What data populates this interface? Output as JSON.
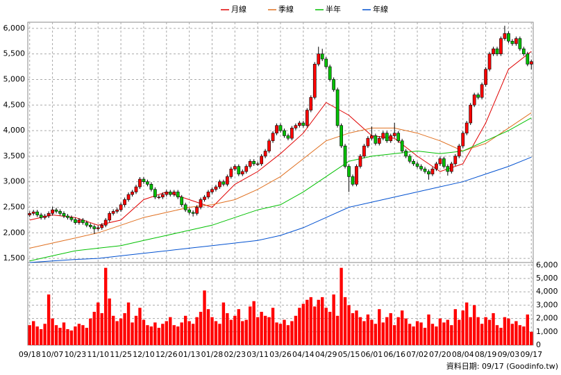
{
  "chart_data": {
    "type": "candlestick",
    "legend": [
      {
        "name": "月線",
        "color": "#e00000"
      },
      {
        "name": "季線",
        "color": "#e07020"
      },
      {
        "name": "半年",
        "color": "#00c000"
      },
      {
        "name": "年線",
        "color": "#0050d0"
      }
    ],
    "categories": [
      "09/18",
      null,
      null,
      null,
      null,
      null,
      "10/07",
      null,
      null,
      null,
      null,
      null,
      "10/23",
      null,
      null,
      null,
      null,
      null,
      "11/10",
      null,
      null,
      null,
      null,
      null,
      "11/25",
      null,
      null,
      null,
      null,
      null,
      "12/10",
      null,
      null,
      null,
      null,
      null,
      "12/26",
      null,
      null,
      null,
      null,
      null,
      "01/13",
      null,
      null,
      null,
      null,
      null,
      "01/28",
      null,
      null,
      null,
      null,
      null,
      "02/23",
      null,
      null,
      null,
      null,
      null,
      "03/11",
      null,
      null,
      null,
      null,
      null,
      "03/26",
      null,
      null,
      null,
      null,
      null,
      "04/14",
      null,
      null,
      null,
      null,
      null,
      "04/29",
      null,
      null,
      null,
      null,
      null,
      "05/15",
      null,
      null,
      null,
      null,
      null,
      "06/01",
      null,
      null,
      null,
      null,
      null,
      "06/16",
      null,
      null,
      null,
      null,
      null,
      "07/02",
      null,
      null,
      null,
      null,
      null,
      "07/20",
      null,
      null,
      null,
      null,
      null,
      "08/04",
      null,
      null,
      null,
      null,
      null,
      "08/19",
      null,
      null,
      null,
      null,
      null,
      "09/03",
      null,
      null,
      null,
      null,
      null,
      "09/17"
    ],
    "ohlc": [
      [
        2350,
        2420,
        2310,
        2380
      ],
      [
        2380,
        2450,
        2340,
        2410
      ],
      [
        2410,
        2450,
        2310,
        2350
      ],
      [
        2350,
        2390,
        2260,
        2300
      ],
      [
        2300,
        2370,
        2260,
        2330
      ],
      [
        2330,
        2420,
        2290,
        2380
      ],
      [
        2380,
        2510,
        2340,
        2450
      ],
      [
        2450,
        2490,
        2380,
        2420
      ],
      [
        2420,
        2460,
        2340,
        2380
      ],
      [
        2380,
        2420,
        2290,
        2330
      ],
      [
        2330,
        2370,
        2260,
        2300
      ],
      [
        2300,
        2340,
        2220,
        2260
      ],
      [
        2260,
        2300,
        2160,
        2200
      ],
      [
        2200,
        2290,
        2160,
        2250
      ],
      [
        2250,
        2290,
        2160,
        2200
      ],
      [
        2200,
        2240,
        2110,
        2150
      ],
      [
        2150,
        2190,
        2080,
        2120
      ],
      [
        2120,
        2160,
        1980,
        2080
      ],
      [
        2080,
        2140,
        2040,
        2100
      ],
      [
        2100,
        2190,
        2060,
        2150
      ],
      [
        2150,
        2290,
        2110,
        2250
      ],
      [
        2250,
        2420,
        2210,
        2380
      ],
      [
        2380,
        2460,
        2340,
        2420
      ],
      [
        2420,
        2490,
        2380,
        2450
      ],
      [
        2450,
        2590,
        2410,
        2550
      ],
      [
        2550,
        2690,
        2510,
        2650
      ],
      [
        2650,
        2790,
        2610,
        2750
      ],
      [
        2750,
        2840,
        2710,
        2800
      ],
      [
        2800,
        2940,
        2760,
        2900
      ],
      [
        2900,
        3090,
        2860,
        3050
      ],
      [
        3050,
        3090,
        2960,
        3000
      ],
      [
        3000,
        3040,
        2910,
        2950
      ],
      [
        2950,
        2990,
        2810,
        2850
      ],
      [
        2850,
        2890,
        2660,
        2700
      ],
      [
        2700,
        2740,
        2660,
        2700
      ],
      [
        2700,
        2790,
        2660,
        2750
      ],
      [
        2750,
        2840,
        2710,
        2800
      ],
      [
        2800,
        2840,
        2710,
        2750
      ],
      [
        2750,
        2840,
        2710,
        2800
      ],
      [
        2800,
        2840,
        2660,
        2700
      ],
      [
        2700,
        2740,
        2510,
        2550
      ],
      [
        2550,
        2590,
        2410,
        2450
      ],
      [
        2450,
        2490,
        2360,
        2400
      ],
      [
        2400,
        2440,
        2320,
        2380
      ],
      [
        2380,
        2540,
        2340,
        2500
      ],
      [
        2500,
        2690,
        2460,
        2650
      ],
      [
        2650,
        2740,
        2610,
        2700
      ],
      [
        2700,
        2840,
        2660,
        2800
      ],
      [
        2800,
        2890,
        2760,
        2850
      ],
      [
        2850,
        2940,
        2810,
        2900
      ],
      [
        2900,
        3040,
        2860,
        3000
      ],
      [
        3000,
        3040,
        2910,
        2950
      ],
      [
        2950,
        3140,
        2910,
        3100
      ],
      [
        3100,
        3290,
        3060,
        3250
      ],
      [
        3250,
        3340,
        3210,
        3300
      ],
      [
        3300,
        3340,
        3110,
        3150
      ],
      [
        3150,
        3240,
        3110,
        3200
      ],
      [
        3200,
        3340,
        3160,
        3300
      ],
      [
        3300,
        3440,
        3260,
        3400
      ],
      [
        3400,
        3440,
        3310,
        3350
      ],
      [
        3350,
        3390,
        3310,
        3350
      ],
      [
        3350,
        3540,
        3310,
        3500
      ],
      [
        3500,
        3640,
        3460,
        3600
      ],
      [
        3600,
        3840,
        3560,
        3800
      ],
      [
        3800,
        3990,
        3760,
        3950
      ],
      [
        3950,
        4140,
        3910,
        4100
      ],
      [
        4100,
        4140,
        3960,
        4000
      ],
      [
        4000,
        4040,
        3860,
        3900
      ],
      [
        3900,
        3940,
        3810,
        3850
      ],
      [
        3850,
        4090,
        3810,
        4050
      ],
      [
        4050,
        4140,
        4010,
        4100
      ],
      [
        4100,
        4190,
        4060,
        4150
      ],
      [
        4150,
        4190,
        4060,
        4100
      ],
      [
        4100,
        4440,
        4060,
        4400
      ],
      [
        4400,
        4690,
        4360,
        4650
      ],
      [
        4650,
        5340,
        4610,
        5300
      ],
      [
        5300,
        5640,
        5260,
        5500
      ],
      [
        5500,
        5600,
        5360,
        5400
      ],
      [
        5400,
        5440,
        5210,
        5250
      ],
      [
        5250,
        5290,
        4960,
        5000
      ],
      [
        5000,
        5040,
        4760,
        4800
      ],
      [
        4800,
        4840,
        4060,
        4100
      ],
      [
        4100,
        4140,
        3660,
        3700
      ],
      [
        3700,
        3740,
        3260,
        3300
      ],
      [
        3300,
        3340,
        2800,
        3100
      ],
      [
        3100,
        3140,
        2910,
        2950
      ],
      [
        2950,
        3340,
        2910,
        3300
      ],
      [
        3300,
        3540,
        3260,
        3500
      ],
      [
        3500,
        3740,
        3460,
        3700
      ],
      [
        3700,
        3890,
        3660,
        3850
      ],
      [
        3850,
        4080,
        3810,
        3900
      ],
      [
        3900,
        3940,
        3710,
        3750
      ],
      [
        3750,
        3890,
        3710,
        3850
      ],
      [
        3850,
        3990,
        3810,
        3950
      ],
      [
        3950,
        3990,
        3760,
        3800
      ],
      [
        3800,
        3940,
        3760,
        3900
      ],
      [
        3900,
        4150,
        3860,
        3950
      ],
      [
        3950,
        3990,
        3760,
        3800
      ],
      [
        3800,
        3840,
        3560,
        3600
      ],
      [
        3600,
        3640,
        3460,
        3500
      ],
      [
        3500,
        3540,
        3360,
        3400
      ],
      [
        3400,
        3440,
        3310,
        3350
      ],
      [
        3350,
        3390,
        3260,
        3300
      ],
      [
        3300,
        3340,
        3210,
        3250
      ],
      [
        3250,
        3290,
        3160,
        3200
      ],
      [
        3200,
        3240,
        3040,
        3150
      ],
      [
        3150,
        3290,
        3110,
        3250
      ],
      [
        3250,
        3390,
        3210,
        3350
      ],
      [
        3350,
        3490,
        3310,
        3450
      ],
      [
        3450,
        3490,
        3260,
        3300
      ],
      [
        3300,
        3340,
        3120,
        3200
      ],
      [
        3200,
        3390,
        3160,
        3350
      ],
      [
        3350,
        3540,
        3310,
        3500
      ],
      [
        3500,
        3740,
        3460,
        3700
      ],
      [
        3700,
        3990,
        3660,
        3950
      ],
      [
        3950,
        4190,
        3910,
        4150
      ],
      [
        4150,
        4540,
        4110,
        4500
      ],
      [
        4500,
        4740,
        4460,
        4700
      ],
      [
        4700,
        4740,
        4610,
        4650
      ],
      [
        4650,
        4940,
        4610,
        4900
      ],
      [
        4900,
        5240,
        4860,
        5200
      ],
      [
        5200,
        5540,
        5160,
        5500
      ],
      [
        5500,
        5640,
        5460,
        5600
      ],
      [
        5600,
        5640,
        5460,
        5500
      ],
      [
        5500,
        5840,
        5460,
        5800
      ],
      [
        5800,
        6050,
        5760,
        5900
      ],
      [
        5900,
        5940,
        5710,
        5750
      ],
      [
        5750,
        5790,
        5660,
        5700
      ],
      [
        5700,
        5840,
        5660,
        5800
      ],
      [
        5800,
        5840,
        5560,
        5600
      ],
      [
        5600,
        5640,
        5460,
        5500
      ],
      [
        5500,
        5540,
        5260,
        5300
      ],
      [
        5300,
        5390,
        5200,
        5350
      ]
    ],
    "up_color": "#ff0000",
    "down_color": "#00c000",
    "ma_series": [
      {
        "color": "#e00000",
        "values": [
          2250,
          2350,
          2300,
          2150,
          2250,
          2650,
          2800,
          2650,
          2500,
          2950,
          3200,
          3550,
          3950,
          4550,
          4300,
          3900,
          3850,
          3500,
          3200,
          3350,
          4150,
          5200,
          5550
        ]
      },
      {
        "color": "#e07020",
        "values": [
          1700,
          1800,
          1900,
          2000,
          2150,
          2300,
          2400,
          2500,
          2550,
          2650,
          2850,
          3100,
          3450,
          3800,
          3950,
          4050,
          4050,
          3950,
          3800,
          3600,
          3750,
          4050,
          4350
        ]
      },
      {
        "color": "#00c000",
        "values": [
          1450,
          1550,
          1650,
          1700,
          1750,
          1850,
          1950,
          2050,
          2150,
          2300,
          2450,
          2550,
          2800,
          3100,
          3400,
          3500,
          3550,
          3600,
          3550,
          3600,
          3800,
          4000,
          4250
        ]
      },
      {
        "color": "#0050d0",
        "values": [
          1420,
          1450,
          1480,
          1500,
          1550,
          1600,
          1650,
          1700,
          1750,
          1800,
          1850,
          1950,
          2100,
          2300,
          2500,
          2600,
          2700,
          2800,
          2900,
          3000,
          3150,
          3300,
          3480
        ]
      }
    ],
    "ylim": [
      1420,
      6120
    ],
    "yticks": [
      {
        "value": 1500,
        "label": "1,500"
      },
      {
        "value": 2000,
        "label": "2,000"
      },
      {
        "value": 2500,
        "label": "2,500"
      },
      {
        "value": 3000,
        "label": "3,000"
      },
      {
        "value": 3500,
        "label": "3,500"
      },
      {
        "value": 4000,
        "label": "4,000"
      },
      {
        "value": 4500,
        "label": "4,500"
      },
      {
        "value": 5000,
        "label": "5,000"
      },
      {
        "value": 5500,
        "label": "5,500"
      },
      {
        "value": 6000,
        "label": "6,000"
      }
    ],
    "volume": {
      "color": "#ff0000",
      "values": [
        1500,
        1800,
        1400,
        1200,
        1600,
        3800,
        2000,
        1500,
        1300,
        1700,
        1200,
        1100,
        1400,
        1600,
        1500,
        1300,
        2000,
        2500,
        3200,
        2400,
        5800,
        3500,
        2200,
        1800,
        2000,
        2400,
        3200,
        1700,
        2200,
        2800,
        1900,
        1500,
        1400,
        1700,
        1300,
        1600,
        1800,
        2100,
        1500,
        1400,
        1700,
        2200,
        1800,
        1600,
        2100,
        2500,
        4100,
        2700,
        2100,
        1800,
        1600,
        3200,
        2400,
        1900,
        2200,
        2700,
        1800,
        1900,
        2900,
        3300,
        2100,
        2500,
        2200,
        2100,
        2800,
        1700,
        1600,
        1900,
        1500,
        1800,
        2200,
        2800,
        3100,
        3400,
        3600,
        2900,
        3400,
        3600,
        2800,
        2500,
        3800,
        2200,
        5800,
        3600,
        3000,
        2400,
        2600,
        2100,
        1800,
        2300,
        1900,
        1600,
        2700,
        1700,
        2100,
        2400,
        1500,
        2100,
        2600,
        2000,
        1600,
        1400,
        1800,
        1700,
        1300,
        2300,
        1600,
        1400,
        2000,
        1700,
        1900,
        1500,
        2700,
        1900,
        2600,
        3200,
        2100,
        3000,
        2100,
        1600,
        2100,
        1900,
        2400,
        1500,
        1300,
        2100,
        2000,
        1600,
        1800,
        1500,
        1400,
        2300,
        1000
      ],
      "ylim": [
        0,
        6200
      ],
      "yticks": [
        0,
        {
          "value": 1000,
          "label": "1,000"
        },
        {
          "value": 2000,
          "label": "2,000"
        },
        {
          "value": 3000,
          "label": "3,000"
        },
        {
          "value": 4000,
          "label": "4,000"
        },
        {
          "value": 5000,
          "label": "5,000"
        },
        {
          "value": 6000,
          "label": "6,000"
        }
      ]
    },
    "grid": true,
    "source_note": "資料日期: 09/17 (Goodinfo.tw)"
  }
}
